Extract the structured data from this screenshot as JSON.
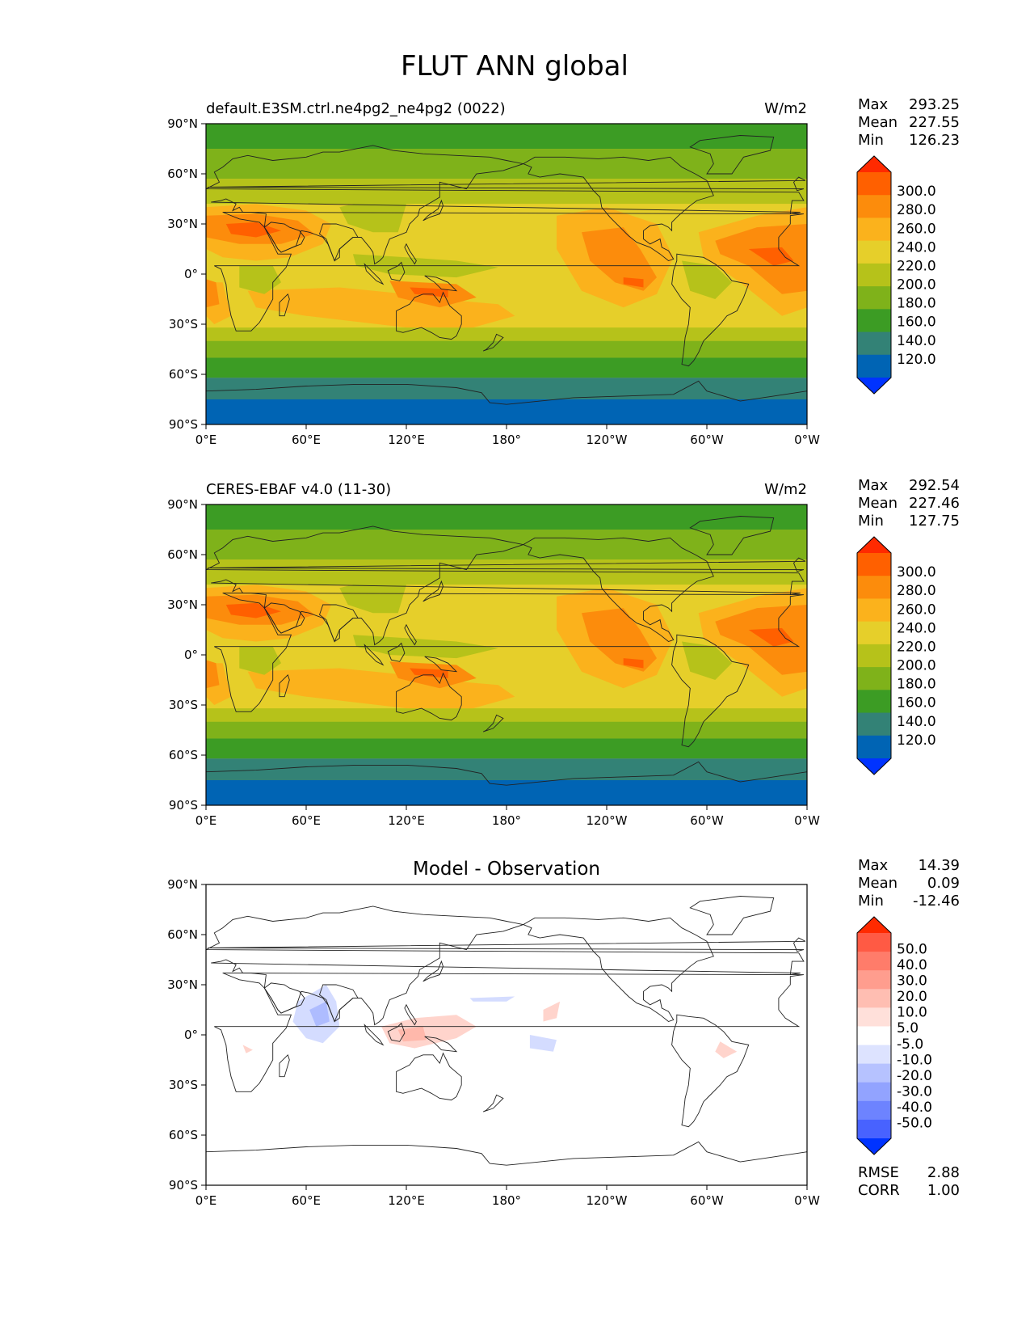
{
  "title": "FLUT ANN global",
  "lat_labels": [
    "90°N",
    "60°N",
    "30°N",
    "0°",
    "30°S",
    "60°S",
    "90°S"
  ],
  "lon_labels": [
    "0°E",
    "60°E",
    "120°E",
    "180°",
    "120°W",
    "60°W",
    "0°W"
  ],
  "panels": [
    {
      "kind": "field",
      "left_title": "default.E3SM.ctrl.ne4pg2_ne4pg2 (0022)",
      "center_title": "",
      "right_title": "W/m2",
      "stats": [
        {
          "label": "Max",
          "value": "293.25"
        },
        {
          "label": "Mean",
          "value": "227.55"
        },
        {
          "label": "Min",
          "value": "126.23"
        }
      ],
      "colorbar_ticks": [
        "300.0",
        "280.0",
        "260.0",
        "240.0",
        "220.0",
        "200.0",
        "180.0",
        "160.0",
        "140.0",
        "120.0"
      ],
      "bottom_stats": []
    },
    {
      "kind": "field",
      "left_title": "CERES-EBAF v4.0 (11-30)",
      "center_title": "",
      "right_title": "W/m2",
      "stats": [
        {
          "label": "Max",
          "value": "292.54"
        },
        {
          "label": "Mean",
          "value": "227.46"
        },
        {
          "label": "Min",
          "value": "127.75"
        }
      ],
      "colorbar_ticks": [
        "300.0",
        "280.0",
        "260.0",
        "240.0",
        "220.0",
        "200.0",
        "180.0",
        "160.0",
        "140.0",
        "120.0"
      ],
      "bottom_stats": []
    },
    {
      "kind": "diff",
      "left_title": "",
      "center_title": "Model - Observation",
      "right_title": "",
      "stats": [
        {
          "label": "Max",
          "value": "14.39"
        },
        {
          "label": "Mean",
          "value": "0.09"
        },
        {
          "label": "Min",
          "value": "-12.46"
        }
      ],
      "colorbar_ticks": [
        "50.0",
        "40.0",
        "30.0",
        "20.0",
        "10.0",
        "5.0",
        "-5.0",
        "-10.0",
        "-20.0",
        "-30.0",
        "-40.0",
        "-50.0"
      ],
      "bottom_stats": [
        {
          "label": "RMSE",
          "value": "2.88"
        },
        {
          "label": "CORR",
          "value": "1.00"
        }
      ]
    }
  ],
  "colors": {
    "field_colorbar": [
      "#ff2a00",
      "#ff6000",
      "#fc8c0c",
      "#fbb21c",
      "#e6cf2a",
      "#b6c21a",
      "#7fb21a",
      "#3c9c24",
      "#338276",
      "#0064b4",
      "#0033ff"
    ],
    "diff_colorbar": [
      "#ff2a00",
      "#ff5a44",
      "#ff7c6a",
      "#ff9d8e",
      "#ffbeb2",
      "#ffe0da",
      "#ffffff",
      "#dde3ff",
      "#b6c2ff",
      "#92a3ff",
      "#6d83ff",
      "#4862ff",
      "#0033ff"
    ],
    "field_bands": {
      "polar_north": "#3c9c24",
      "subpolar_north": "#7fb21a",
      "midlat_north": "#b6c21a",
      "subtropics": "#e6cf2a",
      "warm": "#fbb21c",
      "hot": "#fc8c0c",
      "hottest": "#ff6000",
      "convective": "#b6c21a",
      "midlat_south": "#7fb21a",
      "southern_ocean": "#3c9c24",
      "antarctic_coast": "#338276",
      "antarctic": "#0064b4"
    },
    "diff_pos": "#ffd4cc",
    "diff_pos_strong": "#ffb8ab",
    "diff_neg": "#d4dcff",
    "diff_neg_strong": "#aebcff",
    "coastline": "#222222"
  }
}
